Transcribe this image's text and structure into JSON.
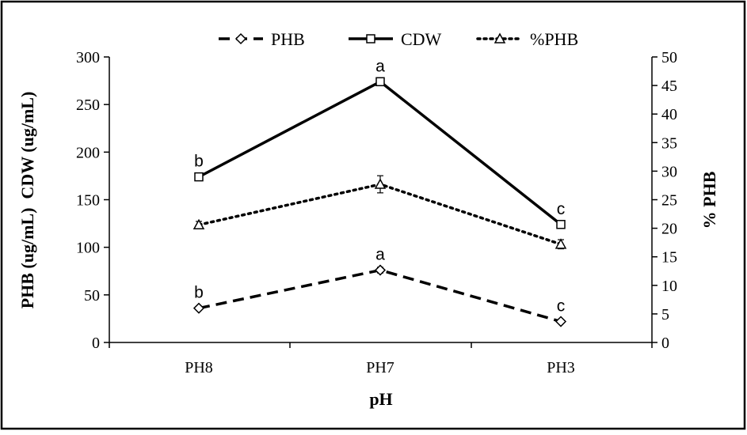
{
  "chart_data": {
    "type": "line",
    "categories": [
      "PH8",
      "PH7",
      "PH3"
    ],
    "xlabel": "pH",
    "ylabel_left": "PHB (ug/mL)  CDW (ug/mL)",
    "ylabel_right": "% PHB",
    "ylim_left": [
      0,
      300
    ],
    "yticks_left": [
      0,
      50,
      100,
      150,
      200,
      250,
      300
    ],
    "ylim_right": [
      0,
      50
    ],
    "yticks_right": [
      0,
      5,
      10,
      15,
      20,
      25,
      30,
      35,
      40,
      45,
      50
    ],
    "grid": false,
    "legend_position": "top-center",
    "series": [
      {
        "name": "PHB",
        "axis": "left",
        "style": "dashed",
        "marker": "diamond",
        "values": [
          36,
          76,
          22
        ],
        "errors": [
          2,
          3,
          1.5
        ],
        "significance": [
          "b",
          "a",
          "c"
        ]
      },
      {
        "name": "CDW",
        "axis": "left",
        "style": "solid",
        "marker": "square",
        "values": [
          174,
          274,
          124
        ],
        "errors": [
          2,
          2,
          2
        ],
        "significance": [
          "b",
          "a",
          "c"
        ]
      },
      {
        "name": "%PHB",
        "axis": "right",
        "style": "dotted",
        "marker": "triangle",
        "values": [
          20.6,
          27.7,
          17.2
        ],
        "errors": [
          0.6,
          1.5,
          0.8
        ]
      }
    ],
    "colors": {
      "line": "#000000",
      "background": "#ffffff"
    }
  }
}
